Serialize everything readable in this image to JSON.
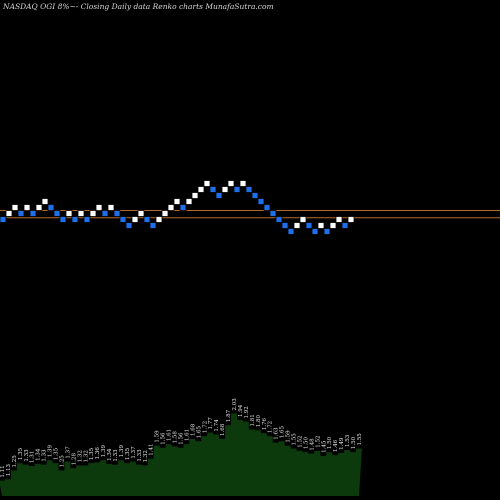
{
  "title": "NASDAQ OGI 8%~- Closing Daily data Renko charts MunafaSutra.com",
  "chart_data": {
    "type": "renko",
    "colors": {
      "up": "#ffffff",
      "down": "#1e6fe8",
      "reference_line": "#b46a28",
      "volume": "#0c3a0c",
      "background": "#000000"
    },
    "bricks": [
      {
        "dir": "down",
        "level": 0
      },
      {
        "dir": "up",
        "level": 1
      },
      {
        "dir": "up",
        "level": 2
      },
      {
        "dir": "down",
        "level": 1
      },
      {
        "dir": "up",
        "level": 2
      },
      {
        "dir": "down",
        "level": 1
      },
      {
        "dir": "up",
        "level": 2
      },
      {
        "dir": "up",
        "level": 3
      },
      {
        "dir": "down",
        "level": 2
      },
      {
        "dir": "down",
        "level": 1
      },
      {
        "dir": "down",
        "level": 0
      },
      {
        "dir": "up",
        "level": 1
      },
      {
        "dir": "down",
        "level": 0
      },
      {
        "dir": "up",
        "level": 1
      },
      {
        "dir": "down",
        "level": 0
      },
      {
        "dir": "up",
        "level": 1
      },
      {
        "dir": "up",
        "level": 2
      },
      {
        "dir": "down",
        "level": 1
      },
      {
        "dir": "up",
        "level": 2
      },
      {
        "dir": "down",
        "level": 1
      },
      {
        "dir": "down",
        "level": 0
      },
      {
        "dir": "down",
        "level": -1
      },
      {
        "dir": "up",
        "level": 0
      },
      {
        "dir": "up",
        "level": 1
      },
      {
        "dir": "down",
        "level": 0
      },
      {
        "dir": "down",
        "level": -1
      },
      {
        "dir": "up",
        "level": 0
      },
      {
        "dir": "up",
        "level": 1
      },
      {
        "dir": "up",
        "level": 2
      },
      {
        "dir": "up",
        "level": 3
      },
      {
        "dir": "down",
        "level": 2
      },
      {
        "dir": "up",
        "level": 3
      },
      {
        "dir": "up",
        "level": 4
      },
      {
        "dir": "up",
        "level": 5
      },
      {
        "dir": "up",
        "level": 6
      },
      {
        "dir": "down",
        "level": 5
      },
      {
        "dir": "down",
        "level": 4
      },
      {
        "dir": "up",
        "level": 5
      },
      {
        "dir": "up",
        "level": 6
      },
      {
        "dir": "down",
        "level": 5
      },
      {
        "dir": "up",
        "level": 6
      },
      {
        "dir": "down",
        "level": 5
      },
      {
        "dir": "down",
        "level": 4
      },
      {
        "dir": "down",
        "level": 3
      },
      {
        "dir": "down",
        "level": 2
      },
      {
        "dir": "down",
        "level": 1
      },
      {
        "dir": "down",
        "level": 0
      },
      {
        "dir": "down",
        "level": -1
      },
      {
        "dir": "down",
        "level": -2
      },
      {
        "dir": "up",
        "level": -1
      },
      {
        "dir": "up",
        "level": 0
      },
      {
        "dir": "down",
        "level": -1
      },
      {
        "dir": "down",
        "level": -2
      },
      {
        "dir": "up",
        "level": -1
      },
      {
        "dir": "down",
        "level": -2
      },
      {
        "dir": "up",
        "level": -1
      },
      {
        "dir": "up",
        "level": 0
      },
      {
        "dir": "down",
        "level": -1
      },
      {
        "dir": "up",
        "level": 0
      }
    ],
    "reference_lines": [
      1,
      -0.2
    ],
    "volume_labels": [
      "1.11",
      "1.13",
      "1.25",
      "1.35",
      "1.33",
      "1.31",
      "1.34",
      "1.33",
      "1.39",
      "1.35",
      "1.25",
      "1.37",
      "1.28",
      "1.32",
      "1.32",
      "1.35",
      "1.36",
      "1.39",
      "1.34",
      "1.33",
      "1.39",
      "1.35",
      "1.37",
      "1.33",
      "1.32",
      "1.41",
      "1.59",
      "1.56",
      "1.61",
      "1.58",
      "1.56",
      "1.61",
      "1.68",
      "1.65",
      "1.72",
      "1.77",
      "1.74",
      "1.68",
      "1.87",
      "2.03",
      "1.94",
      "1.92",
      "1.81",
      "1.80",
      "1.76",
      "1.72",
      "1.63",
      "1.65",
      "1.59",
      "1.55",
      "1.52",
      "1.50",
      "1.48",
      "1.52",
      "1.45",
      "1.50",
      "1.46",
      "1.49",
      "1.53",
      "1.50",
      "1.55"
    ],
    "volume_values": [
      1.11,
      1.13,
      1.25,
      1.35,
      1.33,
      1.31,
      1.34,
      1.33,
      1.39,
      1.35,
      1.25,
      1.37,
      1.28,
      1.32,
      1.32,
      1.35,
      1.36,
      1.39,
      1.34,
      1.33,
      1.39,
      1.35,
      1.37,
      1.33,
      1.32,
      1.41,
      1.59,
      1.56,
      1.61,
      1.58,
      1.56,
      1.61,
      1.68,
      1.65,
      1.72,
      1.77,
      1.74,
      1.68,
      1.87,
      2.03,
      1.94,
      1.92,
      1.81,
      1.8,
      1.76,
      1.72,
      1.63,
      1.65,
      1.59,
      1.55,
      1.52,
      1.5,
      1.48,
      1.52,
      1.45,
      1.5,
      1.46,
      1.49,
      1.53,
      1.5,
      1.55
    ],
    "grid": false
  }
}
